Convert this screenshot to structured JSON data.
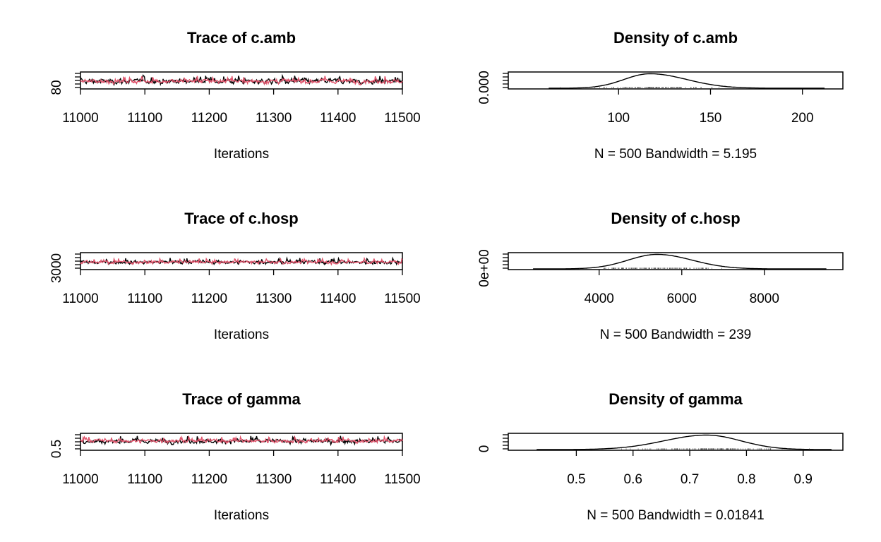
{
  "chart_data": [
    {
      "type": "line",
      "title": "Trace of c.amb",
      "xlabel": "Iterations",
      "ylabel": "",
      "xlim": [
        11000,
        11500
      ],
      "ylim": [
        70,
        175
      ],
      "x_ticks": [
        "11000",
        "11100",
        "11200",
        "11300",
        "11400",
        "11500"
      ],
      "y_ticks": [
        "80"
      ],
      "series": [
        {
          "color": "#000000",
          "x_range": [
            11000,
            11500
          ],
          "n": 500,
          "center": 117,
          "spread": 16
        },
        {
          "color": "#DF536B",
          "x_range": [
            11000,
            11500
          ],
          "n": 500,
          "center": 117,
          "spread": 14
        }
      ]
    },
    {
      "type": "area",
      "title": "Density of c.amb",
      "xlabel": "N = 500   Bandwidth = 5.195",
      "ylabel": "",
      "xlim": [
        40,
        222
      ],
      "x_ticks": [
        "100",
        "150",
        "200"
      ],
      "y_ticks": [
        "0.000"
      ],
      "N": 500,
      "bandwidth": 5.195,
      "density": {
        "x_range": [
          62,
          212
        ],
        "mode": 117,
        "sd_left": 14,
        "sd_right": 20
      }
    },
    {
      "type": "line",
      "title": "Trace of c.hosp",
      "xlabel": "Iterations",
      "ylabel": "",
      "xlim": [
        11000,
        11500
      ],
      "ylim": [
        2600,
        9400
      ],
      "x_ticks": [
        "11000",
        "11100",
        "11200",
        "11300",
        "11400",
        "11500"
      ],
      "y_ticks": [
        "3000"
      ],
      "series": [
        {
          "color": "#000000",
          "x_range": [
            11000,
            11500
          ],
          "n": 500,
          "center": 5500,
          "spread": 750
        },
        {
          "color": "#DF536B",
          "x_range": [
            11000,
            11500
          ],
          "n": 500,
          "center": 5500,
          "spread": 650
        }
      ]
    },
    {
      "type": "area",
      "title": "Density of c.hosp",
      "xlabel": "N = 500   Bandwidth = 239",
      "ylabel": "",
      "xlim": [
        1800,
        9900
      ],
      "x_ticks": [
        "4000",
        "6000",
        "8000"
      ],
      "y_ticks": [
        "0e+00"
      ],
      "N": 500,
      "bandwidth": 239,
      "density": {
        "x_range": [
          2400,
          9500
        ],
        "mode": 5400,
        "sd_left": 700,
        "sd_right": 850
      }
    },
    {
      "type": "line",
      "title": "Trace of gamma",
      "xlabel": "Iterations",
      "ylabel": "",
      "xlim": [
        11000,
        11500
      ],
      "ylim": [
        0.42,
        0.95
      ],
      "x_ticks": [
        "11000",
        "11100",
        "11200",
        "11300",
        "11400",
        "11500"
      ],
      "y_ticks": [
        "0.5"
      ],
      "series": [
        {
          "color": "#000000",
          "x_range": [
            11000,
            11500
          ],
          "n": 500,
          "center": 0.71,
          "spread": 0.07
        },
        {
          "color": "#DF536B",
          "x_range": [
            11000,
            11500
          ],
          "n": 500,
          "center": 0.72,
          "spread": 0.06
        }
      ]
    },
    {
      "type": "area",
      "title": "Density of gamma",
      "xlabel": "N = 500   Bandwidth = 0.01841",
      "ylabel": "",
      "xlim": [
        0.38,
        0.97
      ],
      "x_ticks": [
        "0.5",
        "0.6",
        "0.7",
        "0.8",
        "0.9"
      ],
      "y_ticks": [
        "0"
      ],
      "N": 500,
      "bandwidth": 0.01841,
      "density": {
        "x_range": [
          0.43,
          0.95
        ],
        "mode": 0.73,
        "sd_left": 0.075,
        "sd_right": 0.06
      }
    }
  ]
}
